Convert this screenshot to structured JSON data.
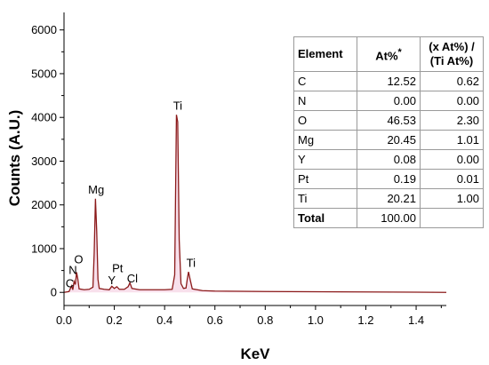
{
  "chart_data": {
    "type": "line",
    "xlabel": "KeV",
    "ylabel": "Counts (A.U.)",
    "xlim": [
      0,
      1.52
    ],
    "ylim": [
      -300,
      6400
    ],
    "xticks": [
      "0.0",
      "0.2",
      "0.4",
      "0.6",
      "0.8",
      "1.0",
      "1.2",
      "1.4"
    ],
    "xtick_values": [
      0,
      0.2,
      0.4,
      0.6,
      0.8,
      1.0,
      1.2,
      1.4
    ],
    "yticks": [
      "0",
      "1000",
      "2000",
      "3000",
      "4000",
      "5000",
      "6000"
    ],
    "ytick_values": [
      0,
      1000,
      2000,
      3000,
      4000,
      5000,
      6000
    ],
    "grid": false,
    "line_color": "#8b1a1a",
    "fill_color": "#f2c6dd",
    "series": [
      {
        "x": [
          0.0,
          0.02,
          0.03,
          0.035,
          0.04,
          0.045,
          0.05,
          0.055,
          0.06,
          0.08,
          0.1,
          0.115,
          0.12,
          0.125,
          0.13,
          0.135,
          0.14,
          0.16,
          0.18,
          0.19,
          0.2,
          0.21,
          0.22,
          0.24,
          0.255,
          0.262,
          0.27,
          0.3,
          0.35,
          0.4,
          0.43,
          0.44,
          0.447,
          0.452,
          0.458,
          0.465,
          0.475,
          0.485,
          0.49,
          0.495,
          0.502,
          0.51,
          0.55,
          0.6,
          0.7,
          0.8,
          1.0,
          1.2,
          1.4,
          1.52
        ],
        "y": [
          0,
          20,
          150,
          60,
          250,
          180,
          460,
          300,
          80,
          60,
          70,
          120,
          900,
          2140,
          1400,
          300,
          90,
          70,
          60,
          140,
          90,
          130,
          70,
          70,
          130,
          220,
          90,
          60,
          60,
          60,
          70,
          400,
          4060,
          3900,
          1200,
          200,
          90,
          100,
          300,
          470,
          280,
          80,
          40,
          30,
          25,
          20,
          15,
          10,
          5,
          0
        ]
      }
    ],
    "peak_labels": [
      {
        "text": "C",
        "x": 0.023,
        "y": 120
      },
      {
        "text": "N",
        "x": 0.035,
        "y": 420
      },
      {
        "text": "O",
        "x": 0.058,
        "y": 660
      },
      {
        "text": "Mg",
        "x": 0.128,
        "y": 2260
      },
      {
        "text": "Y",
        "x": 0.19,
        "y": 190
      },
      {
        "text": "Pt",
        "x": 0.213,
        "y": 460
      },
      {
        "text": "Cl",
        "x": 0.272,
        "y": 230
      },
      {
        "text": "Ti",
        "x": 0.452,
        "y": 4180
      },
      {
        "text": "Ti",
        "x": 0.505,
        "y": 580
      }
    ]
  },
  "table": {
    "headers": {
      "element": "Element",
      "at": "At%",
      "at_star": "*",
      "ratio_line1": "(x At%) /",
      "ratio_line2": "(Ti At%)"
    },
    "rows": [
      {
        "element": "C",
        "at": "12.52",
        "ratio": "0.62"
      },
      {
        "element": "N",
        "at": "0.00",
        "ratio": "0.00"
      },
      {
        "element": "O",
        "at": "46.53",
        "ratio": "2.30"
      },
      {
        "element": "Mg",
        "at": "20.45",
        "ratio": "1.01"
      },
      {
        "element": "Y",
        "at": "0.08",
        "ratio": "0.00"
      },
      {
        "element": "Pt",
        "at": "0.19",
        "ratio": "0.01"
      },
      {
        "element": "Ti",
        "at": "20.21",
        "ratio": "1.00"
      },
      {
        "element": "Total",
        "at": "100.00",
        "ratio": ""
      }
    ]
  }
}
